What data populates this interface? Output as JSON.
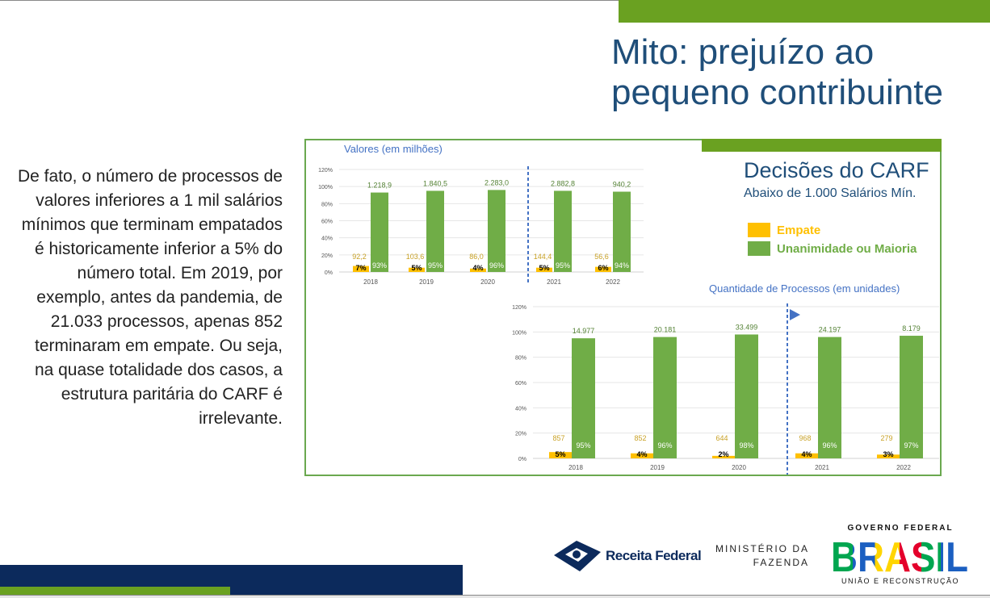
{
  "slide": {
    "title_line1": "Mito: prejuízo ao",
    "title_line2": "pequeno contribuinte",
    "body": "De fato, o número de processos de valores inferiores a 1 mil salários mínimos que terminam empatados é historicamente inferior a 5% do número total. Em 2019, por exemplo, antes da pandemia, de 21.033 processos, apenas 852 terminaram em empate. Ou seja, na quase totalidade dos casos, a estrutura paritária do CARF é irrelevante."
  },
  "panel": {
    "title": "Decisões do CARF",
    "subtitle": "Abaixo de 1.000 Salários Mín.",
    "legend": [
      {
        "label": "Empate",
        "color": "#ffc000"
      },
      {
        "label": "Unanimidade ou Maioria",
        "color": "#70ad47"
      }
    ]
  },
  "chart_data": [
    {
      "type": "bar",
      "title": "Valores (em milhões)",
      "categories": [
        "2018",
        "2019",
        "2020",
        "2021",
        "2022"
      ],
      "yticks": [
        "0%",
        "20%",
        "40%",
        "60%",
        "80%",
        "100%",
        "120%"
      ],
      "ylim": [
        0,
        120
      ],
      "series": [
        {
          "name": "Empate",
          "percent": [
            7,
            5,
            4,
            5,
            6
          ],
          "percent_labels": [
            "7%",
            "5%",
            "4%",
            "5%",
            "6%"
          ],
          "value_labels": [
            "92,2",
            "103,6",
            "86,0",
            "144,4",
            "56,6"
          ]
        },
        {
          "name": "Unanimidade ou Maioria",
          "percent": [
            93,
            95,
            96,
            95,
            94
          ],
          "percent_labels": [
            "93%",
            "95%",
            "96%",
            "95%",
            "94%"
          ],
          "value_labels": [
            "1.218,9",
            "1.840,5",
            "2.283,0",
            "2.882,8",
            "940,2"
          ]
        }
      ]
    },
    {
      "type": "bar",
      "title": "Quantidade de Processos (em unidades)",
      "categories": [
        "2018",
        "2019",
        "2020",
        "2021",
        "2022"
      ],
      "yticks": [
        "0%",
        "20%",
        "40%",
        "60%",
        "80%",
        "100%",
        "120%"
      ],
      "ylim": [
        0,
        120
      ],
      "series": [
        {
          "name": "Empate",
          "percent": [
            5,
            4,
            2,
            4,
            3
          ],
          "percent_labels": [
            "5%",
            "4%",
            "2%",
            "4%",
            "3%"
          ],
          "value_labels": [
            "857",
            "852",
            "644",
            "968",
            "279"
          ]
        },
        {
          "name": "Unanimidade ou Maioria",
          "percent": [
            95,
            96,
            98,
            96,
            97
          ],
          "percent_labels": [
            "95%",
            "96%",
            "98%",
            "96%",
            "97%"
          ],
          "value_labels": [
            "14.977",
            "20.181",
            "33.499",
            "24.197",
            "8.179"
          ]
        }
      ]
    }
  ],
  "footer": {
    "receita": "Receita Federal",
    "ministerio_line1": "MINISTÉRIO DA",
    "ministerio_line2": "FAZENDA",
    "governo": "GOVERNO FEDERAL",
    "brasil": "BRASIL",
    "uniao": "UNIÃO E RECONSTRUÇÃO"
  }
}
